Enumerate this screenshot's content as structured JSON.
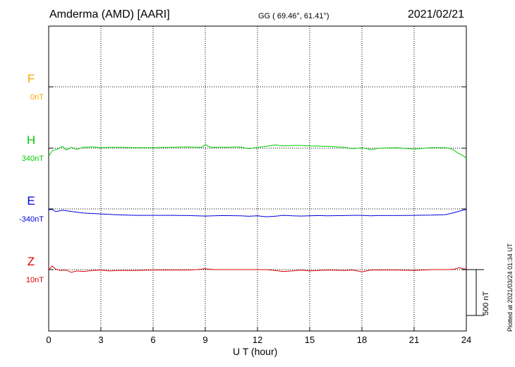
{
  "header": {
    "station": "Amderma (AMD)  [AARI]",
    "coords": "GG ( 69.46°,  61.41°)",
    "date": "2021/02/21"
  },
  "footer": {
    "plotted": "Plotted at 2021/03/24 01:34 UT",
    "scale_label": "500 nT"
  },
  "colors": {
    "F": "#ffa500",
    "H": "#00cc00",
    "E": "#0000dd",
    "Z": "#dd0000"
  },
  "chart_data": {
    "type": "line",
    "xlabel": "U T (hour)",
    "xlim": [
      0,
      24
    ],
    "xticks": [
      "0",
      "3",
      "6",
      "9",
      "12",
      "15",
      "18",
      "21",
      "24"
    ],
    "scale_bar_nT": 500,
    "grid": true,
    "channels": [
      {
        "name": "F",
        "offset_label": "0nT"
      },
      {
        "name": "H",
        "offset_label": "340nT"
      },
      {
        "name": "E",
        "offset_label": "-340nT"
      },
      {
        "name": "Z",
        "offset_label": "10nT"
      }
    ],
    "series": [
      {
        "name": "H",
        "x": [
          0,
          0.2,
          0.5,
          0.8,
          1,
          1.3,
          1.6,
          2,
          2.5,
          3,
          3.5,
          4,
          5,
          6,
          7,
          8,
          8.8,
          9,
          9.3,
          10,
          11,
          11.5,
          12,
          12.5,
          13,
          13.5,
          14,
          14.5,
          15,
          16,
          17,
          17.5,
          18,
          18.5,
          19,
          20,
          21,
          22,
          22.8,
          23.2,
          23.5,
          23.8,
          24
        ],
        "y": [
          -85,
          -30,
          -10,
          20,
          -20,
          10,
          -15,
          10,
          15,
          5,
          10,
          10,
          5,
          5,
          10,
          15,
          10,
          40,
          10,
          10,
          15,
          -5,
          10,
          20,
          35,
          25,
          30,
          30,
          25,
          20,
          10,
          -5,
          5,
          -15,
          0,
          5,
          -10,
          5,
          5,
          -10,
          -50,
          -80,
          -110
        ]
      },
      {
        "name": "E",
        "x": [
          0,
          0.2,
          0.4,
          0.8,
          1.2,
          1.6,
          2,
          2.5,
          3,
          3.5,
          4,
          5,
          6,
          7,
          8,
          8.5,
          9,
          9.5,
          10,
          11,
          11.5,
          12,
          12.5,
          13,
          13.5,
          14,
          14.5,
          15,
          15.5,
          16,
          17,
          17.5,
          18,
          18.5,
          19,
          20,
          21,
          22,
          22.8,
          23.2,
          23.5,
          23.8,
          24
        ],
        "y": [
          -10,
          -5,
          -30,
          -15,
          -25,
          -35,
          -45,
          -50,
          -55,
          -60,
          -65,
          -70,
          -70,
          -70,
          -72,
          -75,
          -78,
          -75,
          -72,
          -75,
          -80,
          -75,
          -85,
          -80,
          -70,
          -75,
          -78,
          -75,
          -72,
          -75,
          -72,
          -70,
          -70,
          -75,
          -72,
          -72,
          -70,
          -68,
          -62,
          -45,
          -30,
          -15,
          -5
        ]
      },
      {
        "name": "Z",
        "x": [
          0,
          0.2,
          0.4,
          0.7,
          1,
          1.3,
          1.6,
          2,
          2.5,
          3,
          3.5,
          4,
          5,
          6,
          7,
          8,
          8.5,
          9,
          9.5,
          10,
          11,
          12,
          12.5,
          13,
          13.5,
          14,
          14.5,
          15,
          15.5,
          16,
          17,
          17.5,
          18,
          18.5,
          19,
          20,
          21,
          22,
          23,
          23.3,
          23.6,
          23.8,
          24
        ],
        "y": [
          -5,
          40,
          5,
          -10,
          -5,
          -30,
          -15,
          -20,
          -10,
          -5,
          -15,
          -10,
          -10,
          -5,
          -5,
          -5,
          0,
          10,
          0,
          0,
          0,
          0,
          0,
          -10,
          -20,
          -15,
          -5,
          -15,
          -10,
          -5,
          -10,
          -5,
          -25,
          -5,
          -5,
          -5,
          -10,
          0,
          0,
          5,
          20,
          10,
          5
        ]
      }
    ]
  }
}
